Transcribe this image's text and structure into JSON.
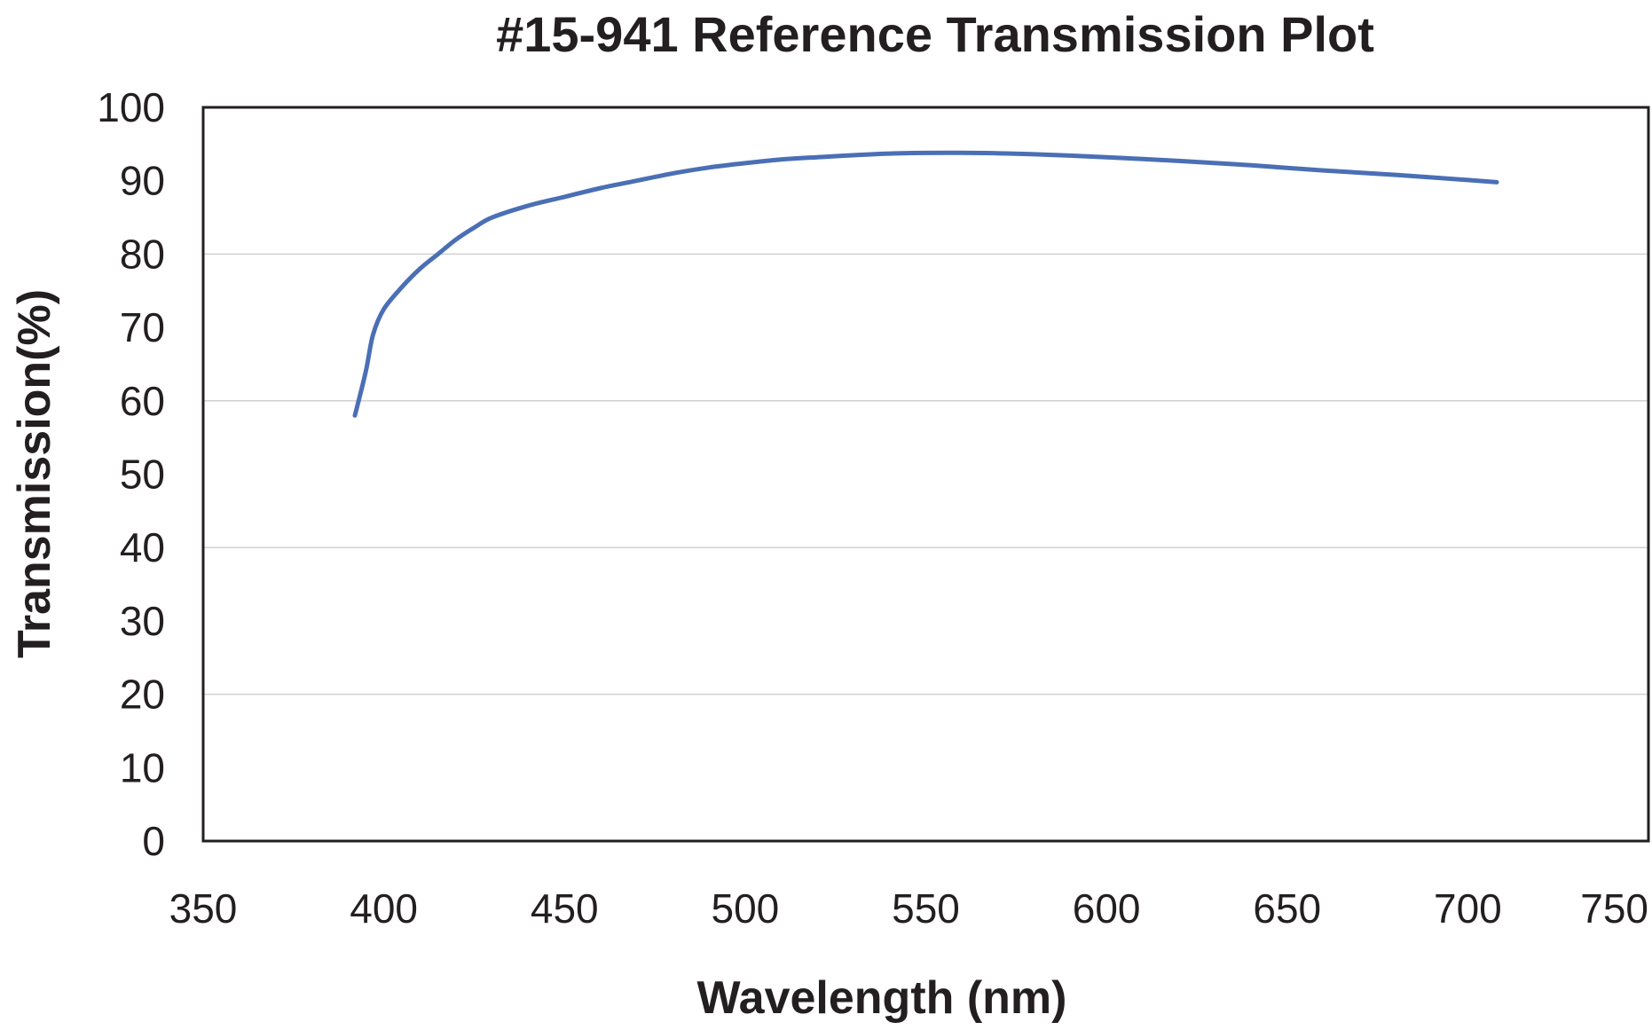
{
  "chart_data": {
    "type": "line",
    "title": "#15-941 Reference Transmission Plot",
    "xlabel": "Wavelength (nm)",
    "ylabel": "Transmission(%)",
    "xlim": [
      350,
      750
    ],
    "ylim": [
      0,
      100
    ],
    "x_ticks": [
      350,
      400,
      450,
      500,
      550,
      600,
      650,
      700,
      750
    ],
    "y_ticks": [
      0,
      10,
      20,
      30,
      40,
      50,
      60,
      70,
      80,
      90,
      100
    ],
    "y_gridlines": [
      20,
      40,
      60,
      80
    ],
    "grid": true,
    "legend": "none",
    "series": [
      {
        "color": "#4a6fb5",
        "x": [
          392,
          395,
          397,
          400,
          405,
          410,
          415,
          420,
          425,
          430,
          440,
          450,
          460,
          470,
          480,
          490,
          500,
          510,
          520,
          540,
          560,
          580,
          600,
          620,
          640,
          660,
          680,
          700,
          708
        ],
        "y": [
          58.0,
          64.0,
          69.0,
          72.5,
          75.5,
          78.0,
          80.0,
          82.0,
          83.6,
          85.0,
          86.6,
          87.8,
          89.0,
          90.0,
          91.0,
          91.8,
          92.4,
          92.9,
          93.2,
          93.7,
          93.8,
          93.6,
          93.2,
          92.7,
          92.1,
          91.4,
          90.8,
          90.1,
          89.8
        ]
      }
    ]
  }
}
